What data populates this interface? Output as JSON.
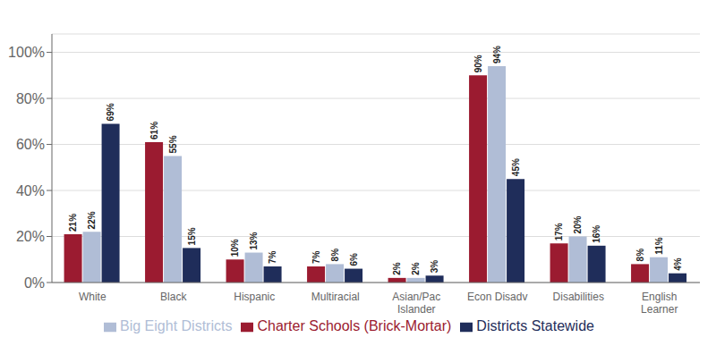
{
  "chart_data": {
    "type": "bar",
    "categories": [
      "White",
      "Black",
      "Hispanic",
      "Multiracial",
      "Asian/Pac\nIslander",
      "Econ Disadv",
      "Disabilities",
      "English\nLearner"
    ],
    "series": [
      {
        "name": "Charter Schools (Brick-Mortar)",
        "color": "#9B1B30",
        "values": [
          21,
          61,
          10,
          7,
          2,
          90,
          17,
          8
        ],
        "value_labels": [
          "21%",
          "61%",
          "10%",
          "7%",
          "2%",
          "90%",
          "17%",
          "8%"
        ]
      },
      {
        "name": "Big Eight Districts",
        "color": "#B0BDD6",
        "values": [
          22,
          55,
          13,
          8,
          2,
          94,
          20,
          11
        ],
        "value_labels": [
          "22%",
          "55%",
          "13%",
          "8%",
          "2%",
          "94%",
          "20%",
          "11%"
        ]
      },
      {
        "name": "Districts Statewide",
        "color": "#1F2D5A",
        "values": [
          69,
          15,
          7,
          6,
          3,
          45,
          16,
          4
        ],
        "value_labels": [
          "69%",
          "15%",
          "7%",
          "6%",
          "3%",
          "45%",
          "16%",
          "4%"
        ]
      }
    ],
    "ylim": [
      0,
      108
    ],
    "yticks": [
      {
        "value": 0,
        "label": "0%"
      },
      {
        "value": 20,
        "label": "20%"
      },
      {
        "value": 40,
        "label": "40%"
      },
      {
        "value": 60,
        "label": "60%"
      },
      {
        "value": 80,
        "label": "80%"
      },
      {
        "value": 100,
        "label": "100%"
      }
    ],
    "grid": true,
    "legend": "bottom",
    "data_labels": true
  }
}
